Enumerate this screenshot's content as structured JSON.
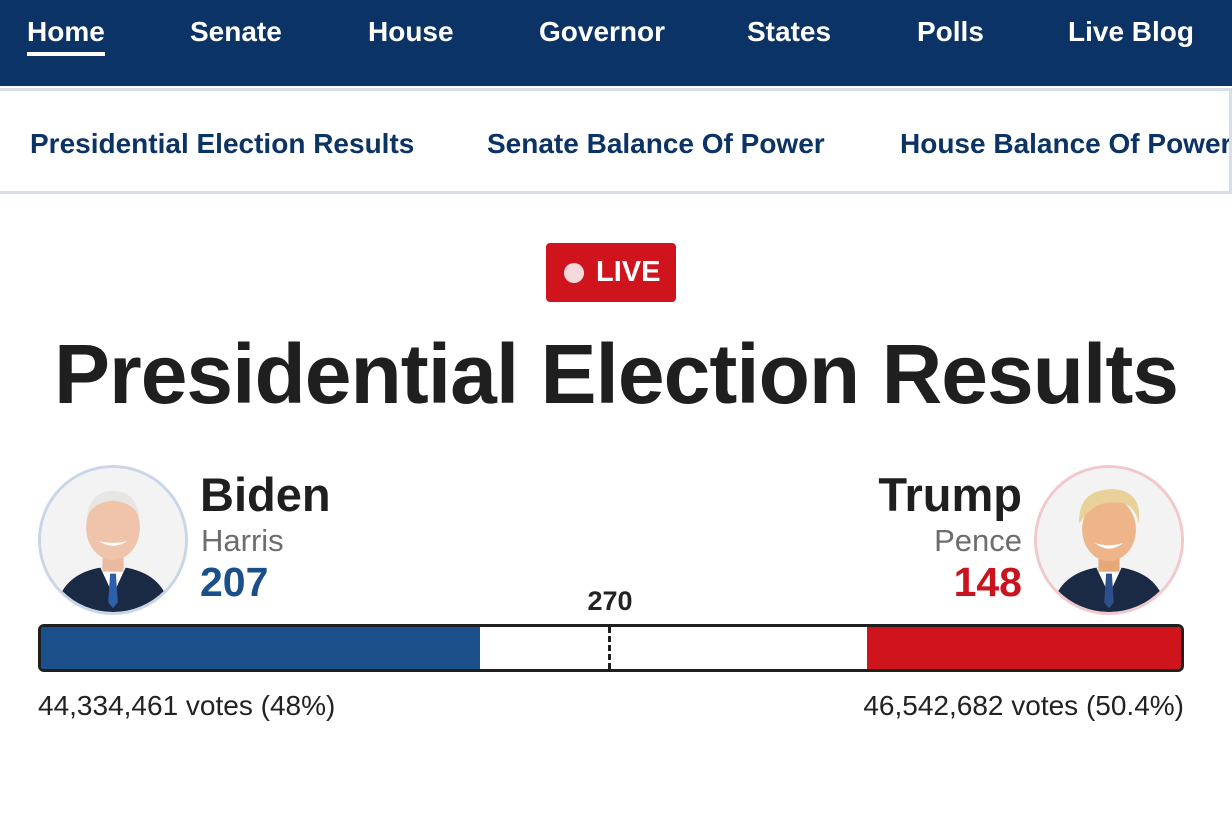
{
  "topnav": {
    "items": [
      {
        "label": "Home",
        "active": true
      },
      {
        "label": "Senate"
      },
      {
        "label": "House"
      },
      {
        "label": "Governor"
      },
      {
        "label": "States"
      },
      {
        "label": "Polls"
      },
      {
        "label": "Live Blog"
      }
    ]
  },
  "subnav": {
    "items": [
      {
        "label": "Presidential Election Results"
      },
      {
        "label": "Senate Balance Of Power"
      },
      {
        "label": "House Balance Of Power"
      }
    ]
  },
  "live_badge": {
    "label": "LIVE"
  },
  "title": "Presidential Election Results",
  "race": {
    "total_electoral_votes": 538,
    "threshold": 270,
    "threshold_label": "270",
    "democrat": {
      "name": "Biden",
      "running_mate": "Harris",
      "electoral_votes": 207,
      "electoral_votes_label": "207",
      "votes_label": "44,334,461 votes (48%)",
      "color": "#1b4f8a"
    },
    "republican": {
      "name": "Trump",
      "running_mate": "Pence",
      "electoral_votes": 148,
      "electoral_votes_label": "148",
      "votes_label": "46,542,682 votes (50.4%)",
      "color": "#d0141e"
    }
  },
  "colors": {
    "nav_background": "#0b3366",
    "live_red": "#d0141e",
    "democrat_blue": "#1b4f8a",
    "republican_red": "#c8141e"
  }
}
